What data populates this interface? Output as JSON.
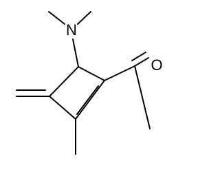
{
  "atoms": [
    {
      "label": "N"
    },
    {
      "label": "O"
    }
  ]
}
